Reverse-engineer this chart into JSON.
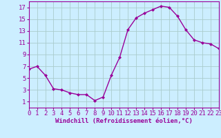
{
  "x": [
    0,
    1,
    2,
    3,
    4,
    5,
    6,
    7,
    8,
    9,
    10,
    11,
    12,
    13,
    14,
    15,
    16,
    17,
    18,
    19,
    20,
    21,
    22,
    23
  ],
  "y": [
    6.5,
    7.0,
    5.5,
    3.2,
    3.0,
    2.5,
    2.2,
    2.2,
    1.2,
    1.8,
    5.5,
    8.5,
    13.2,
    15.2,
    16.0,
    16.6,
    17.2,
    17.0,
    15.5,
    13.2,
    11.5,
    11.0,
    10.8,
    10.0
  ],
  "xlim": [
    0,
    23
  ],
  "ylim": [
    0,
    18
  ],
  "yticks": [
    1,
    3,
    5,
    7,
    9,
    11,
    13,
    15,
    17
  ],
  "xticks": [
    0,
    1,
    2,
    3,
    4,
    5,
    6,
    7,
    8,
    9,
    10,
    11,
    12,
    13,
    14,
    15,
    16,
    17,
    18,
    19,
    20,
    21,
    22,
    23
  ],
  "xlabel": "Windchill (Refroidissement éolien,°C)",
  "line_color": "#990099",
  "marker": "D",
  "marker_size": 2.0,
  "linewidth": 1.0,
  "bg_color": "#cceeff",
  "grid_color": "#aacccc",
  "tick_fontsize": 6.5,
  "xlabel_fontsize": 6.5
}
